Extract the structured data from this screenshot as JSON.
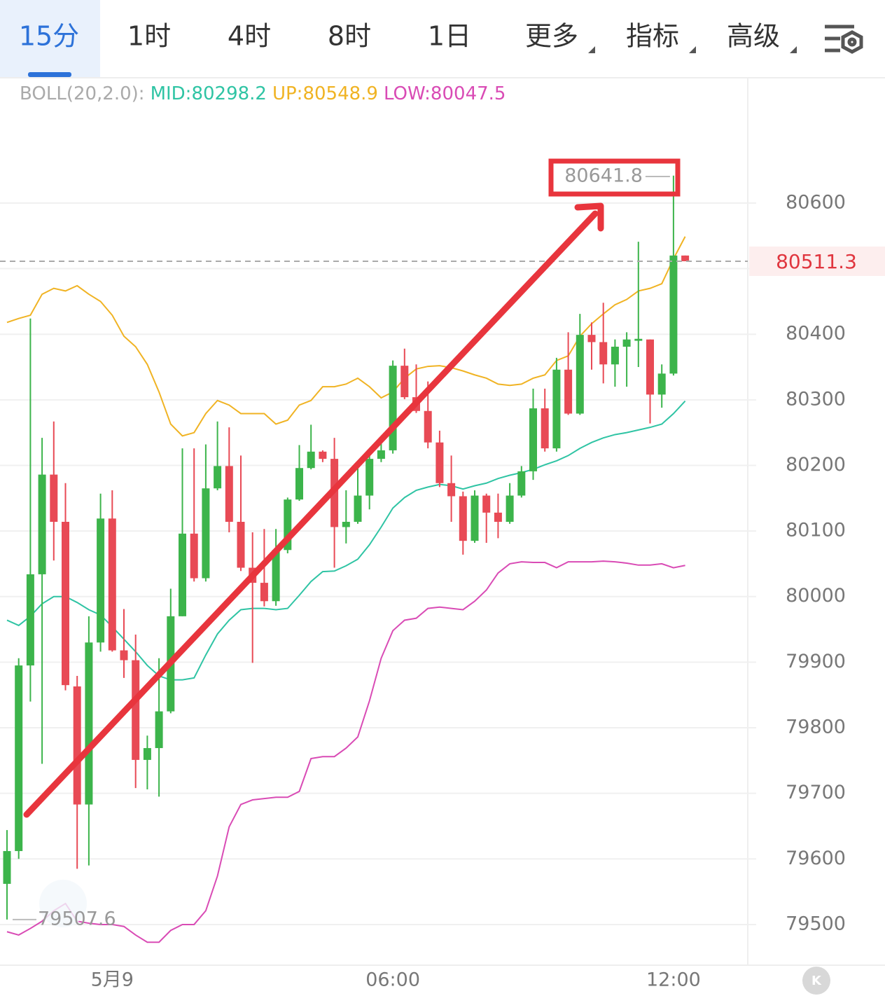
{
  "tabs": {
    "items": [
      "15分",
      "1时",
      "4时",
      "8时",
      "1日",
      "更多",
      "指标",
      "高级"
    ],
    "active": 0
  },
  "chart_data": {
    "type": "candlestick",
    "indicator": {
      "params": "BOLL(20,2.0):",
      "mid": "MID:80298.2",
      "up": "UP:80548.9",
      "low": "LOW:80047.5"
    },
    "categories": [
      null,
      null,
      null,
      null,
      null,
      null,
      null,
      null,
      null,
      "5月9",
      null,
      null,
      null,
      null,
      null,
      null,
      null,
      null,
      null,
      null,
      null,
      null,
      null,
      null,
      null,
      null,
      null,
      null,
      null,
      null,
      null,
      null,
      null,
      "06:00",
      null,
      null,
      null,
      null,
      null,
      null,
      null,
      null,
      null,
      null,
      null,
      null,
      null,
      null,
      null,
      null,
      null,
      null,
      null,
      null,
      null,
      null,
      null,
      "12:00",
      null
    ],
    "open": [
      79562,
      79612,
      79895,
      80034,
      80186,
      80114,
      79863,
      79683,
      79930,
      80119,
      79918,
      79903,
      79751,
      79769,
      79825,
      79970,
      80096,
      80028,
      80165,
      80199,
      80114,
      80044,
      80021,
      79993,
      80071,
      80148,
      80196,
      80221,
      80210,
      80106,
      80114,
      80154,
      80210,
      80223,
      80352,
      80304,
      80283,
      80235,
      80173,
      80153,
      80085,
      80154,
      80128,
      80114,
      80154,
      80191,
      80287,
      80226,
      80346,
      80279,
      80399,
      80388,
      80354,
      80381,
      80390,
      80392,
      80308,
      80340,
      80520
    ],
    "high": [
      79644,
      79906,
      80424,
      80242,
      80267,
      80173,
      79879,
      79970,
      80157,
      80162,
      79981,
      79942,
      79788,
      79906,
      80012,
      80226,
      80226,
      80232,
      80267,
      80258,
      80215,
      80098,
      80103,
      80103,
      80151,
      80231,
      80262,
      80223,
      80242,
      80162,
      80199,
      80226,
      80237,
      80360,
      80378,
      80354,
      80328,
      80253,
      80215,
      80160,
      80162,
      80157,
      80157,
      80173,
      80199,
      80317,
      80317,
      80364,
      80403,
      80431,
      80418,
      80448,
      80392,
      80403,
      80541,
      80392,
      80354,
      80641.8,
      80520
    ],
    "low": [
      79507.6,
      79600,
      79840,
      79745,
      80055,
      79857,
      79585,
      79590,
      79916,
      79916,
      79876,
      79708,
      79706,
      79695,
      79822,
      79970,
      80023,
      80023,
      80162,
      80098,
      80039,
      79899,
      79985,
      79986,
      80066,
      80146,
      80194,
      80205,
      80044,
      80081,
      80111,
      80133,
      80205,
      80218,
      80301,
      80280,
      80226,
      80167,
      80114,
      80064,
      80082,
      80082,
      80089,
      80111,
      80151,
      80178,
      80221,
      80221,
      80277,
      80277,
      80346,
      80325,
      80320,
      80320,
      80350,
      80264,
      80288,
      80337,
      80511.3
    ],
    "close": [
      79612,
      79895,
      80034,
      80186,
      80114,
      79865,
      79683,
      79930,
      80119,
      79918,
      79903,
      79751,
      79769,
      79825,
      79970,
      80096,
      80028,
      80165,
      80199,
      80114,
      80044,
      80021,
      79993,
      80071,
      80148,
      80196,
      80221,
      80210,
      80106,
      80114,
      80154,
      80210,
      80223,
      80352,
      80304,
      80283,
      80235,
      80173,
      80153,
      80085,
      80154,
      80128,
      80114,
      80154,
      80191,
      80287,
      80226,
      80346,
      80279,
      80399,
      80388,
      80354,
      80381,
      80392,
      80393,
      80308,
      80340,
      80520,
      80511.3
    ],
    "up_color": "#3cb44b",
    "down_color": "#e84a55",
    "series": [
      {
        "name": "UP",
        "color": "#f0b323",
        "values": [
          80418,
          80424,
          80429,
          80461,
          80470,
          80466,
          80474,
          80461,
          80450,
          80429,
          80397,
          80381,
          80354,
          80312,
          80263,
          80245,
          80250,
          80279,
          80299,
          80292,
          80279,
          80279,
          80279,
          80263,
          80269,
          80292,
          80299,
          80320,
          80320,
          80324,
          80333,
          80320,
          80303,
          80312,
          80333,
          80347,
          80351,
          80352,
          80349,
          80344,
          80338,
          80333,
          80324,
          80322,
          80324,
          80333,
          80338,
          80360,
          80367,
          80397,
          80416,
          80431,
          80445,
          80453,
          80466,
          80470,
          80477,
          80515,
          80548.9
        ]
      },
      {
        "name": "MID",
        "color": "#2fc4a4",
        "values": [
          79964,
          79956,
          79970,
          79989,
          80000,
          80000,
          79991,
          79980,
          79972,
          79954,
          79935,
          79916,
          79895,
          79879,
          79873,
          79873,
          79876,
          79911,
          79943,
          79964,
          79980,
          79982,
          79982,
          79980,
          79982,
          80002,
          80023,
          80038,
          80039,
          80047,
          80057,
          80079,
          80106,
          80135,
          80151,
          80162,
          80167,
          80171,
          80169,
          80164,
          80169,
          80173,
          80180,
          80185,
          80189,
          80194,
          80201,
          80207,
          80215,
          80226,
          80235,
          80242,
          80247,
          80250,
          80254,
          80258,
          80263,
          80279,
          80298.2
        ]
      },
      {
        "name": "LOW",
        "color": "#d94bb5",
        "values": [
          79489,
          79484,
          79494,
          79505,
          79521,
          79532,
          79505,
          79502,
          79500,
          79500,
          79497,
          79484,
          79473,
          79473,
          79491,
          79500,
          79500,
          79521,
          79574,
          79649,
          79683,
          79690,
          79692,
          79694,
          79694,
          79703,
          79753,
          79756,
          79756,
          79769,
          79786,
          79841,
          79906,
          79948,
          79964,
          79967,
          79982,
          79984,
          79982,
          79980,
          79993,
          80010,
          80036,
          80050,
          80053,
          80052,
          80052,
          80044,
          80053,
          80053,
          80053,
          80054,
          80053,
          80051,
          80048,
          80048,
          80050,
          80044,
          80047.5
        ]
      }
    ],
    "ylim": [
      79438,
      80790
    ],
    "yticks": [
      79500,
      79600,
      79700,
      79800,
      79900,
      80000,
      80100,
      80200,
      80300,
      80400,
      80500,
      80600
    ],
    "grid": true
  }
}
